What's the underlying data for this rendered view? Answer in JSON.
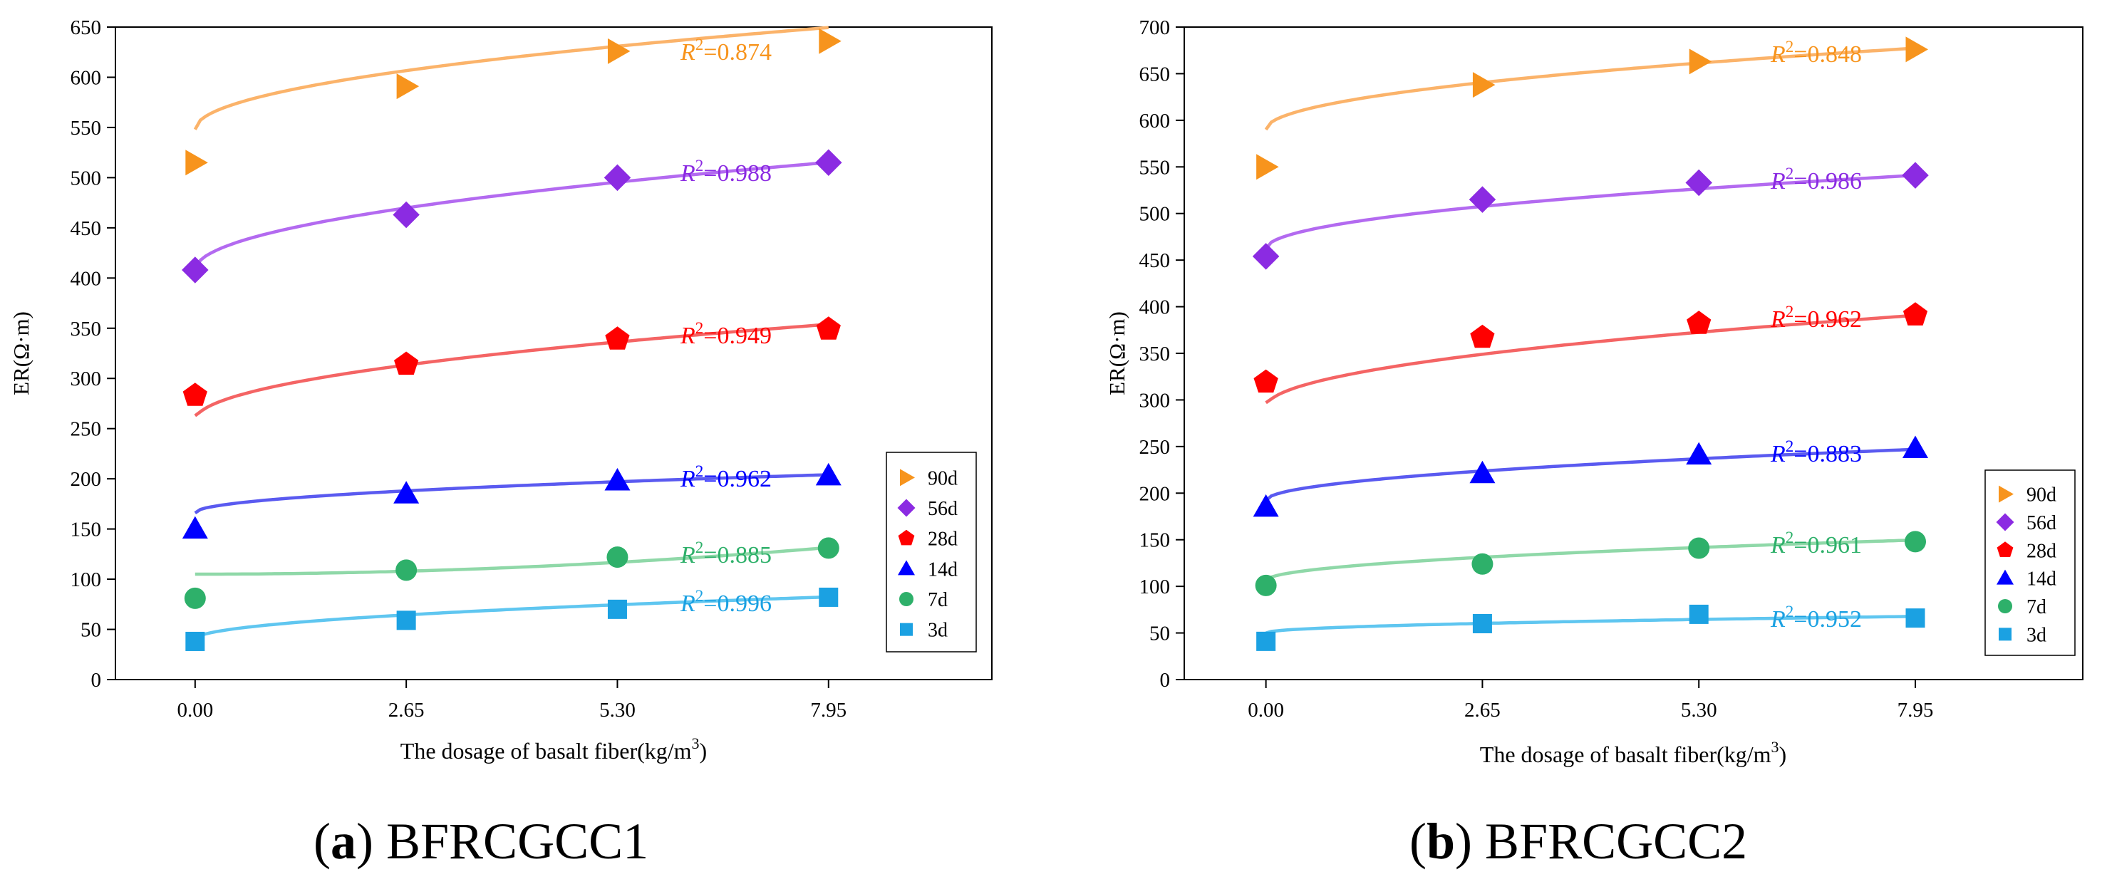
{
  "chart_data": [
    {
      "type": "scatter",
      "panel_label": "(a)",
      "title": "BFRCGCC1",
      "xlabel": "The dosage of basalt fiber(kg/m",
      "xlabel_sup": "3",
      "xlabel_end": ")",
      "ylabel": "ER(Ω·m)",
      "categories": [
        "0.00",
        "2.65",
        "5.30",
        "7.95"
      ],
      "x": [
        0.0,
        2.65,
        5.3,
        7.95
      ],
      "xlim": [
        -1.0,
        10.0
      ],
      "ylim": [
        0,
        650
      ],
      "yticks": [
        0,
        50,
        100,
        150,
        200,
        250,
        300,
        350,
        400,
        450,
        500,
        550,
        600,
        650
      ],
      "legend_position": "right",
      "series": [
        {
          "name": "90d",
          "values": [
            515,
            591,
            626,
            636
          ],
          "color": "#f7941d",
          "fit_color": "#fbb36a",
          "marker": "triangle-right",
          "r2": "=0.874",
          "fit": {
            "a": 548,
            "b": 36
          }
        },
        {
          "name": "56d",
          "values": [
            408,
            463,
            500,
            515
          ],
          "color": "#8b2be2",
          "fit_color": "#b36af0",
          "marker": "diamond",
          "r2": "=0.988",
          "fit": {
            "a": 408,
            "b": 38
          }
        },
        {
          "name": "28d",
          "values": [
            283,
            314,
            339,
            349
          ],
          "color": "#ff0000",
          "fit_color": "#f46464",
          "marker": "pentagon",
          "r2": "=0.949",
          "fit": {
            "a": 258,
            "b": 34,
            "x0": 0.02
          }
        },
        {
          "name": "14d",
          "values": [
            150,
            185,
            198,
            203
          ],
          "color": "#0000ff",
          "fit_color": "#5a5af0",
          "marker": "triangle-up",
          "r2": "=0.962",
          "fit": {
            "a": 166,
            "b": 13.5
          }
        },
        {
          "name": "7d",
          "values": [
            81,
            109,
            122,
            131
          ],
          "color": "#2eb06a",
          "fit_color": "#8fd8a8",
          "marker": "circle",
          "r2": "=0.885",
          "fit": {
            "a": 105,
            "b": 0.42,
            "linear": true
          }
        },
        {
          "name": "3d",
          "values": [
            38,
            59,
            70,
            82
          ],
          "color": "#1ba1e2",
          "fit_color": "#5fc6f0",
          "marker": "square",
          "r2": "=0.996",
          "fit": {
            "a": 40,
            "b": 15
          }
        }
      ]
    },
    {
      "type": "scatter",
      "panel_label": "(b)",
      "title": "BFRCGCC2",
      "xlabel": "The dosage of basalt fiber(kg/m",
      "xlabel_sup": "3",
      "xlabel_end": ")",
      "ylabel": "ER(Ω·m)",
      "categories": [
        "0.00",
        "2.65",
        "5.30",
        "7.95"
      ],
      "x": [
        0.0,
        2.65,
        5.3,
        7.95
      ],
      "xlim": [
        -1.0,
        10.0
      ],
      "ylim": [
        0,
        700
      ],
      "yticks": [
        0,
        50,
        100,
        150,
        200,
        250,
        300,
        350,
        400,
        450,
        500,
        550,
        600,
        650,
        700
      ],
      "legend_position": "right",
      "series": [
        {
          "name": "90d",
          "values": [
            550,
            638,
            663,
            676
          ],
          "color": "#f7941d",
          "fit_color": "#fbb36a",
          "marker": "triangle-right",
          "r2": "=0.848",
          "fit": {
            "a": 590,
            "b": 31
          }
        },
        {
          "name": "56d",
          "values": [
            454,
            515,
            533,
            541
          ],
          "color": "#8b2be2",
          "fit_color": "#b36af0",
          "marker": "diamond",
          "r2": "=0.986",
          "fit": {
            "a": 462,
            "b": 28
          }
        },
        {
          "name": "28d",
          "values": [
            319,
            367,
            382,
            391
          ],
          "color": "#ff0000",
          "fit_color": "#f46464",
          "marker": "pentagon",
          "r2": "=0.962",
          "fit": {
            "a": 292,
            "b": 35,
            "x0": 0.02
          }
        },
        {
          "name": "14d",
          "values": [
            185,
            221,
            241,
            248
          ],
          "color": "#0000ff",
          "fit_color": "#5a5af0",
          "marker": "triangle-up",
          "r2": "=0.883",
          "fit": {
            "a": 192,
            "b": 19.5
          }
        },
        {
          "name": "7d",
          "values": [
            101,
            124,
            141,
            148
          ],
          "color": "#2eb06a",
          "fit_color": "#8fd8a8",
          "marker": "circle",
          "r2": "=0.961",
          "fit": {
            "a": 106,
            "b": 15.5
          }
        },
        {
          "name": "3d",
          "values": [
            41,
            60,
            70,
            66
          ],
          "color": "#1ba1e2",
          "fit_color": "#5fc6f0",
          "marker": "square",
          "r2": "=0.952",
          "fit": {
            "a": 50,
            "b": 6.3
          }
        }
      ]
    }
  ]
}
